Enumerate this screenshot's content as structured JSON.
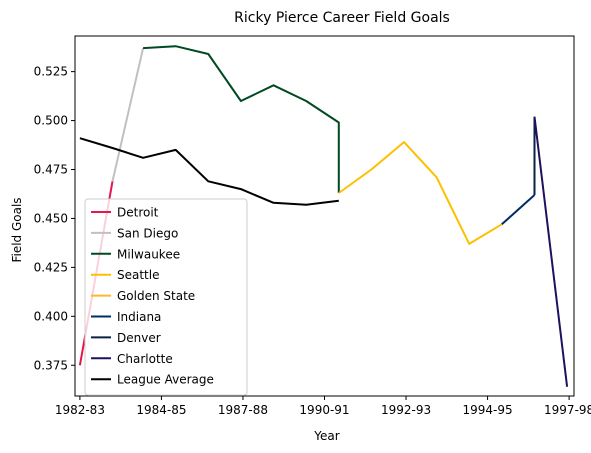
{
  "chart_data": {
    "type": "line",
    "title": "Ricky Pierce Career Field Goals",
    "xlabel": "Year",
    "ylabel": "Field Goals",
    "x_tick_labels": [
      {
        "x": 0,
        "label": "1982-83"
      },
      {
        "x": 2,
        "label": "1984-85"
      },
      {
        "x": 4,
        "label": "1987-88"
      },
      {
        "x": 6,
        "label": "1990-91"
      },
      {
        "x": 8,
        "label": "1992-93"
      },
      {
        "x": 10,
        "label": "1994-95"
      },
      {
        "x": 12,
        "label": "1997-98"
      }
    ],
    "y_ticks": [
      0.375,
      0.4,
      0.425,
      0.45,
      0.475,
      0.5,
      0.525
    ],
    "y_tick_labels": [
      "0.375",
      "0.400",
      "0.425",
      "0.450",
      "0.475",
      "0.500",
      "0.525"
    ],
    "xlim": [
      -0.12,
      12.12
    ],
    "ylim": [
      0.3593,
      0.5432
    ],
    "grid": false,
    "legend_position": "lower-left",
    "series": [
      {
        "name": "Detroit",
        "color": "#e4174f",
        "points": [
          [
            0,
            0.375
          ],
          [
            0.8,
            0.469
          ]
        ]
      },
      {
        "name": "San Diego",
        "color": "#c0c0c0",
        "points": [
          [
            0.8,
            0.469
          ],
          [
            1.55,
            0.537
          ]
        ]
      },
      {
        "name": "Milwaukee",
        "color": "#004a21",
        "points": [
          [
            1.55,
            0.537
          ],
          [
            2.35,
            0.538
          ],
          [
            3.15,
            0.534
          ],
          [
            3.95,
            0.51
          ],
          [
            4.75,
            0.518
          ],
          [
            5.55,
            0.51
          ],
          [
            6.35,
            0.499
          ],
          [
            6.35,
            0.463
          ]
        ]
      },
      {
        "name": "Seattle",
        "color": "#fcc000",
        "points": [
          [
            6.35,
            0.463
          ],
          [
            7.15,
            0.475
          ],
          [
            7.95,
            0.489
          ],
          [
            8.75,
            0.471
          ],
          [
            9.55,
            0.437
          ],
          [
            10.35,
            0.447
          ]
        ]
      },
      {
        "name": "Golden State",
        "color": "#fdb927",
        "points": [
          [
            10.35,
            0.447
          ],
          [
            10.35,
            0.447
          ]
        ]
      },
      {
        "name": "Indiana",
        "color": "#002d62",
        "points": [
          [
            10.35,
            0.447
          ],
          [
            11.15,
            0.462
          ]
        ]
      },
      {
        "name": "Denver",
        "color": "#0a2240",
        "points": [
          [
            11.15,
            0.462
          ],
          [
            11.15,
            0.502
          ]
        ]
      },
      {
        "name": "Charlotte",
        "color": "#1d1160",
        "points": [
          [
            11.15,
            0.502
          ],
          [
            11.95,
            0.364
          ]
        ]
      },
      {
        "name": "League Average",
        "color": "#000000",
        "points": [
          [
            0,
            0.491
          ],
          [
            0.8,
            0.486
          ],
          [
            1.55,
            0.481
          ],
          [
            2.35,
            0.485
          ],
          [
            3.15,
            0.469
          ],
          [
            3.95,
            0.465
          ],
          [
            4.75,
            0.458
          ],
          [
            5.55,
            0.457
          ],
          [
            6.35,
            0.459
          ]
        ]
      }
    ]
  }
}
